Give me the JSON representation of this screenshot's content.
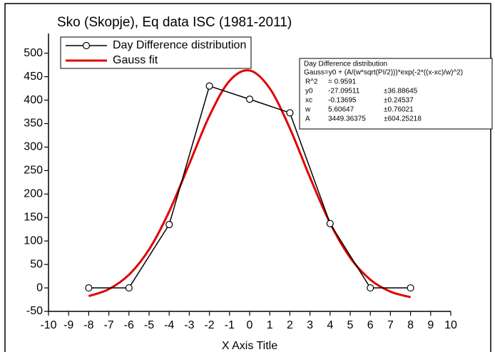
{
  "chart_data": {
    "type": "line",
    "title": "Sko (Skopje), Eq data ISC (1981-2011)",
    "x_label": "X Axis Title",
    "xlim": [
      -10,
      10
    ],
    "xticks": [
      -10,
      -9,
      -8,
      -7,
      -6,
      -5,
      -4,
      -3,
      -2,
      -1,
      0,
      1,
      2,
      3,
      4,
      5,
      6,
      7,
      8,
      9,
      10
    ],
    "ylim": [
      -50,
      542
    ],
    "yticks": [
      -50,
      0,
      50,
      100,
      150,
      200,
      250,
      300,
      350,
      400,
      450,
      500
    ],
    "legend": "upper left",
    "series": [
      {
        "name": "Day Difference distribution",
        "color": "#000000",
        "markers": true,
        "x": [
          -8,
          -6,
          -4,
          -2,
          0,
          2,
          4,
          6,
          8
        ],
        "values": [
          0,
          0,
          135,
          430,
          402,
          373,
          137,
          0,
          0
        ]
      },
      {
        "name": "Gauss fit",
        "color": "#e00000",
        "markers": false,
        "x": [
          -8,
          -7,
          -6,
          -5,
          -4,
          -3,
          -2,
          -1,
          0,
          1,
          2,
          3,
          4,
          5,
          6,
          7,
          8
        ],
        "values": [
          -17.5,
          -2.6,
          28.0,
          81.9,
          162.8,
          264.3,
          366.5,
          441.1,
          463.2,
          425.0,
          340.0,
          235.4,
          138.1,
          64.5,
          17.6,
          -7.9,
          -19.8
        ]
      }
    ],
    "annotation": {
      "title": "Day Difference distribution",
      "equation": "Gauss=y0 + (A/(w*sqrt(PI/2)))*exp(-2*((x-xc)/w)^2)",
      "rows": [
        [
          "R^2",
          "= 0.9591",
          ""
        ],
        [
          "y0",
          "-27.09511",
          "±36.88645"
        ],
        [
          "xc",
          "-0.13695",
          "±0.24537"
        ],
        [
          "w",
          "5.60647",
          "±0.76021"
        ],
        [
          "A",
          "3449.36375",
          "±604.25218"
        ]
      ]
    }
  }
}
